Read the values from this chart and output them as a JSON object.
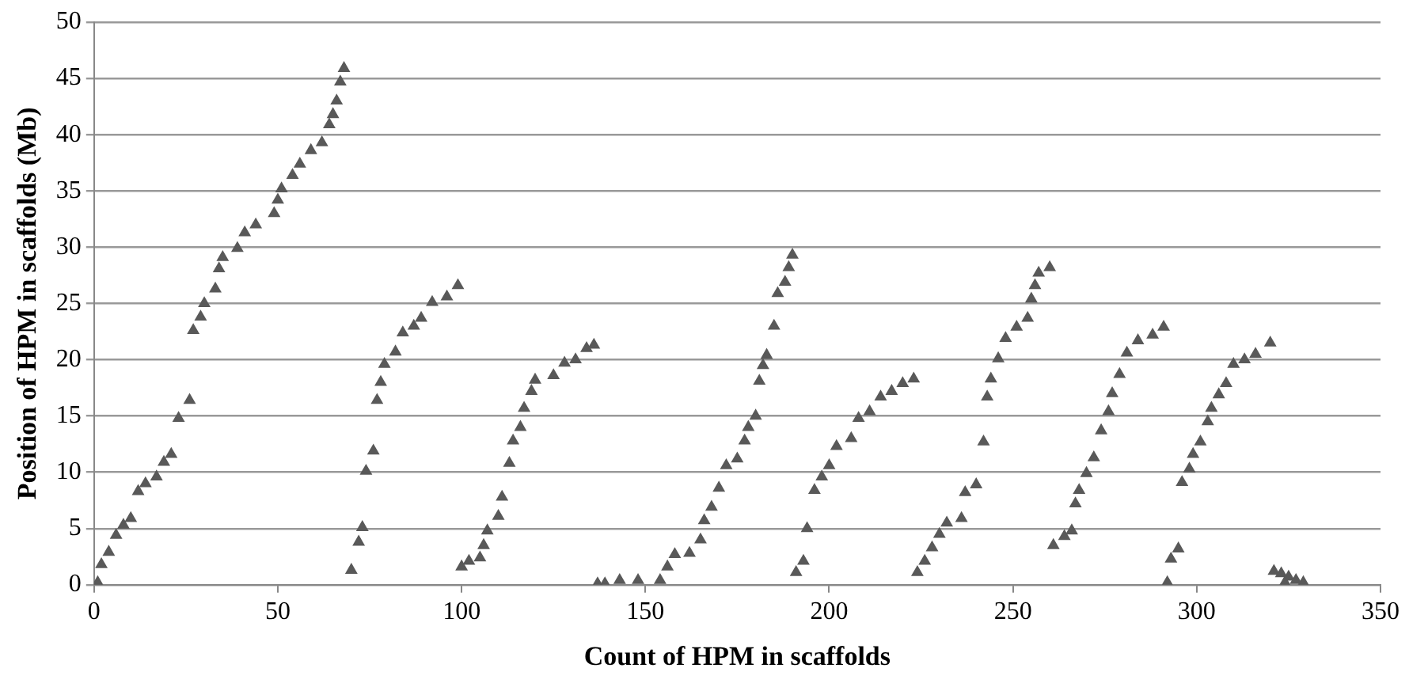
{
  "chart_data": {
    "type": "scatter",
    "xlabel": "Count of HPM in scaffolds",
    "ylabel": "Position of HPM in scaffolds (Mb)",
    "xlim": [
      0,
      350
    ],
    "xticks": [
      0,
      50,
      100,
      150,
      200,
      250,
      300,
      350
    ],
    "ylim": [
      0,
      50
    ],
    "yticks": [
      0,
      5,
      10,
      15,
      20,
      25,
      30,
      35,
      40,
      45,
      50
    ],
    "grid": "y",
    "legend": false,
    "marker": "triangle",
    "series": [
      {
        "color": "#595959",
        "x": [
          1,
          2,
          4,
          6,
          8,
          10,
          12,
          14,
          17,
          19,
          21,
          23,
          26,
          27,
          29,
          30,
          33,
          34,
          35,
          39,
          41,
          44,
          49,
          50,
          51,
          54,
          56,
          59,
          62,
          64,
          65,
          66,
          67,
          68,
          70,
          72,
          73,
          74,
          76,
          77,
          78,
          79,
          82,
          84,
          87,
          89,
          92,
          96,
          99,
          100,
          102,
          105,
          106,
          107,
          110,
          111,
          113,
          114,
          116,
          117,
          119,
          120,
          125,
          128,
          131,
          134,
          136,
          137,
          139,
          143,
          148,
          154,
          156,
          158,
          162,
          165,
          166,
          168,
          170,
          172,
          175,
          177,
          178,
          180,
          181,
          182,
          183,
          185,
          186,
          188,
          189,
          190,
          191,
          193,
          194,
          196,
          198,
          200,
          202,
          206,
          208,
          211,
          214,
          217,
          220,
          223,
          224,
          226,
          228,
          230,
          232,
          236,
          237,
          240,
          242,
          243,
          244,
          246,
          248,
          251,
          254,
          255,
          256,
          257,
          260,
          261,
          264,
          266,
          267,
          268,
          270,
          272,
          274,
          276,
          277,
          279,
          281,
          284,
          288,
          291,
          292,
          293,
          295,
          296,
          298,
          299,
          301,
          303,
          304,
          306,
          308,
          310,
          313,
          316,
          320,
          321,
          323,
          324,
          325,
          327,
          329
        ],
        "values": [
          0.2,
          1.8,
          2.9,
          4.4,
          5.3,
          5.9,
          8.3,
          9.0,
          9.6,
          10.9,
          11.6,
          14.8,
          16.4,
          22.6,
          23.8,
          25.0,
          26.3,
          28.1,
          29.1,
          29.9,
          31.3,
          32.0,
          33.0,
          34.2,
          35.2,
          36.4,
          37.4,
          38.6,
          39.3,
          40.9,
          41.8,
          43.0,
          44.7,
          45.9,
          1.3,
          3.8,
          5.1,
          10.1,
          11.9,
          16.4,
          18.0,
          19.6,
          20.7,
          22.4,
          23.0,
          23.7,
          25.1,
          25.6,
          26.6,
          1.6,
          2.1,
          2.4,
          3.5,
          4.8,
          6.1,
          7.8,
          10.8,
          12.8,
          14.0,
          15.7,
          17.2,
          18.2,
          18.6,
          19.7,
          20.0,
          21.0,
          21.3,
          0.1,
          0.1,
          0.4,
          0.4,
          0.4,
          1.6,
          2.7,
          2.8,
          4.0,
          5.7,
          6.9,
          8.6,
          10.6,
          11.2,
          12.8,
          14.0,
          15.0,
          18.1,
          19.5,
          20.4,
          23.0,
          25.9,
          26.9,
          28.2,
          29.3,
          1.1,
          2.1,
          5.0,
          8.4,
          9.6,
          10.6,
          12.3,
          13.0,
          14.8,
          15.4,
          16.7,
          17.2,
          17.9,
          18.3,
          1.1,
          2.1,
          3.3,
          4.5,
          5.5,
          5.9,
          8.2,
          8.9,
          12.7,
          16.7,
          18.3,
          20.1,
          21.9,
          22.9,
          23.7,
          25.4,
          26.6,
          27.7,
          28.2,
          3.5,
          4.3,
          4.8,
          7.2,
          8.4,
          9.9,
          11.3,
          13.7,
          15.4,
          17.0,
          18.7,
          20.6,
          21.7,
          22.2,
          22.9,
          0.2,
          2.3,
          3.2,
          9.1,
          10.3,
          11.6,
          12.7,
          14.5,
          15.7,
          16.9,
          17.9,
          19.6,
          20.0,
          20.5,
          21.5,
          1.2,
          1.0,
          0.2,
          0.7,
          0.4,
          0.2
        ]
      }
    ]
  }
}
